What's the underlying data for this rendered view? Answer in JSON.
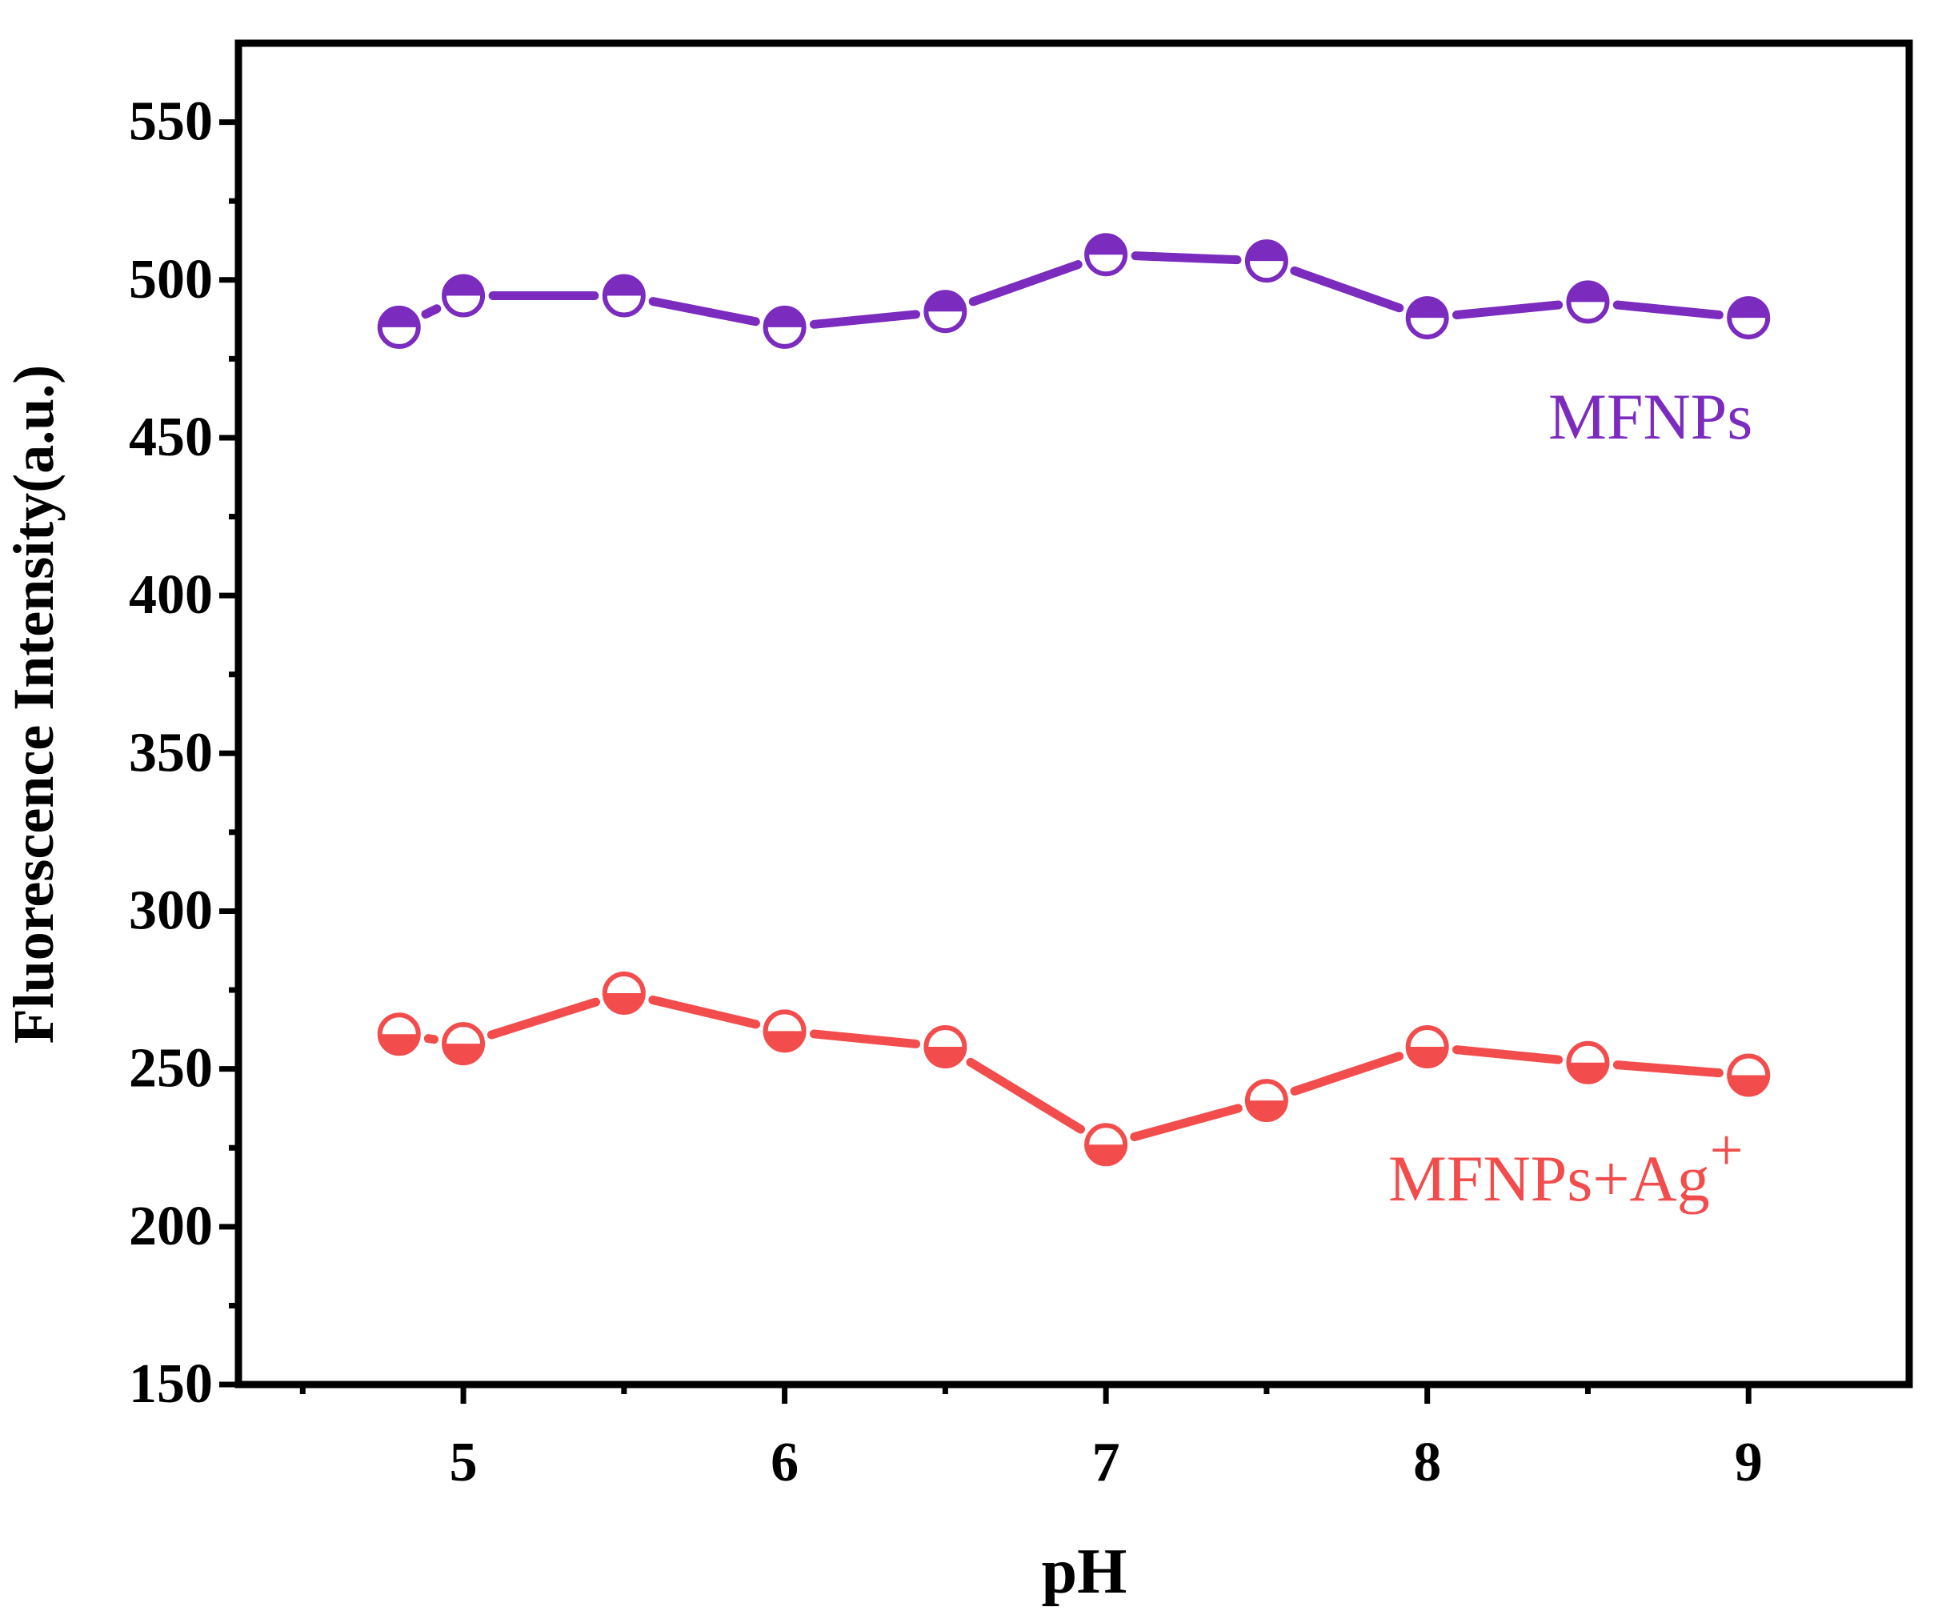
{
  "chart_data": {
    "type": "line",
    "title": "",
    "xlabel": "pH",
    "ylabel": "Fluorescence Intensity(a.u.)",
    "xlim": [
      4.3,
      9.5
    ],
    "ylim": [
      150,
      575
    ],
    "x_ticks": [
      5,
      6,
      7,
      8,
      9
    ],
    "x_minor_ticks": [
      4.5,
      5.5,
      6.5,
      7.5,
      8.5
    ],
    "y_ticks": [
      150,
      200,
      250,
      300,
      350,
      400,
      450,
      500,
      550
    ],
    "y_minor_ticks": [
      175,
      225,
      275,
      325,
      375,
      425,
      475,
      525
    ],
    "grid": false,
    "series": [
      {
        "name": "MFNPs",
        "label": "MFNPs",
        "color": "#7B2CBF",
        "marker": "half-filled circle (top filled)",
        "x": [
          4.8,
          5.0,
          5.5,
          6.0,
          6.5,
          7.0,
          7.5,
          8.0,
          8.5,
          9.0
        ],
        "values": [
          485,
          495,
          495,
          485,
          490,
          508,
          506,
          488,
          493,
          488
        ]
      },
      {
        "name": "MFNPs+Ag+",
        "label_main": "MFNPs+Ag",
        "label_sup": "+",
        "color": "#F24C4C",
        "marker": "half-filled circle (bottom filled)",
        "x": [
          4.8,
          5.0,
          5.5,
          6.0,
          6.5,
          7.0,
          7.5,
          8.0,
          8.5,
          9.0
        ],
        "values": [
          261,
          258,
          274,
          262,
          257,
          226,
          240,
          257,
          252,
          248
        ]
      }
    ]
  }
}
